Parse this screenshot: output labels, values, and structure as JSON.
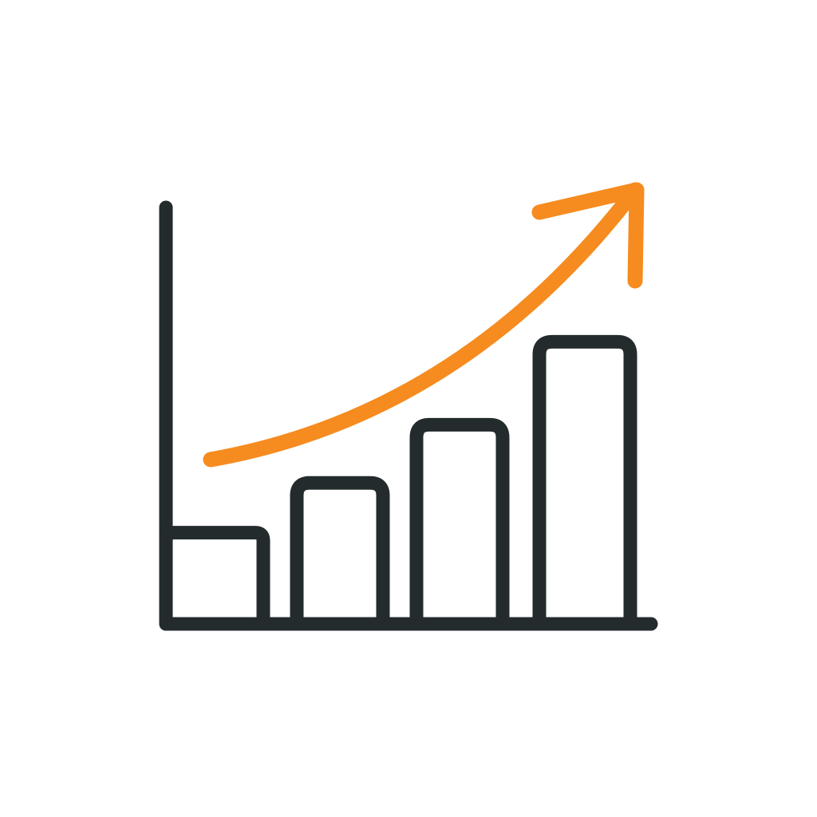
{
  "icon": {
    "name": "growth-bar-chart-icon",
    "style": "outline",
    "colors": {
      "background": "#ffffff",
      "outline": "#232b2d",
      "accent": "#f68b1f"
    },
    "bars": [
      {
        "name": "bar-1",
        "relative_height": 0.22
      },
      {
        "name": "bar-2",
        "relative_height": 0.34
      },
      {
        "name": "bar-3",
        "relative_height": 0.48
      },
      {
        "name": "bar-4",
        "relative_height": 0.68
      }
    ],
    "trend": {
      "name": "trend-arrow",
      "direction": "up-right"
    }
  }
}
